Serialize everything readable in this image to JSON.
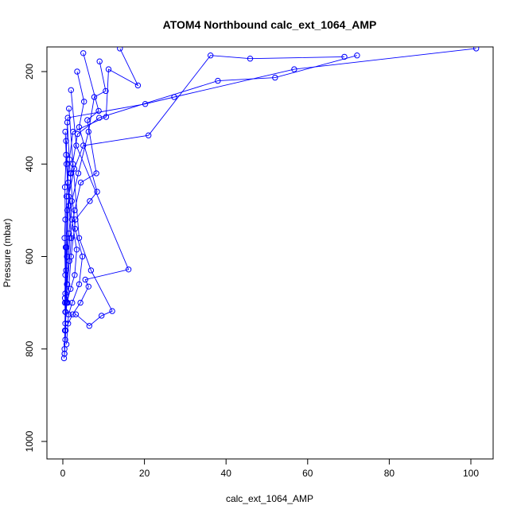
{
  "chart_data": {
    "type": "scatter",
    "title": "ATOM4 Northbound calc_ext_1064_AMP",
    "xlabel": "calc_ext_1064_AMP",
    "ylabel": "Pressure (mbar)",
    "xlim": [
      0,
      105
    ],
    "ylim": [
      1040,
      150
    ],
    "y_reversed": true,
    "grid": false,
    "legend": "none",
    "color": "#0000ff",
    "x_ticks": [
      0,
      20,
      40,
      60,
      80,
      100
    ],
    "y_ticks": [
      200,
      400,
      600,
      800,
      1000
    ],
    "x_tick_labels": [
      "0",
      "20",
      "40",
      "60",
      "80",
      "100"
    ],
    "y_tick_labels": [
      "200",
      "400",
      "600",
      "800",
      "1000"
    ],
    "series": [
      {
        "x": [
          101.3,
          56.7,
          27.3,
          20.2,
          1.2,
          0.8,
          0.5,
          0.6,
          0.4,
          0.6,
          0.5,
          0.7,
          0.4,
          0.3
        ],
        "y": [
          150,
          195,
          255,
          270,
          300,
          380,
          450,
          520,
          560,
          640,
          700,
          760,
          810,
          820
        ]
      },
      {
        "x": [
          72.1,
          52.0,
          38.0,
          8.9,
          3.6,
          2.0,
          1.1,
          0.9,
          0.6,
          0.5,
          0.4
        ],
        "y": [
          165,
          213,
          220,
          300,
          335,
          420,
          500,
          580,
          680,
          760,
          810
        ]
      },
      {
        "x": [
          69.0,
          45.9,
          36.2,
          21.0,
          5.0,
          2.8,
          1.4,
          1.0,
          0.8,
          0.6
        ],
        "y": [
          168,
          172,
          165,
          338,
          360,
          410,
          470,
          600,
          700,
          780
        ]
      },
      {
        "x": [
          14.0,
          18.4,
          11.2,
          10.6,
          2.5,
          1.6,
          0.9,
          0.7,
          0.5
        ],
        "y": [
          150,
          230,
          195,
          298,
          330,
          390,
          470,
          580,
          690
        ]
      },
      {
        "x": [
          9.0,
          10.5,
          7.7,
          6.3,
          3.8,
          2.2,
          1.5,
          0.8,
          0.6
        ],
        "y": [
          178,
          242,
          255,
          330,
          420,
          480,
          550,
          630,
          720
        ]
      },
      {
        "x": [
          5.0,
          8.8,
          6.0,
          8.2,
          4.4,
          2.9,
          1.7,
          1.0
        ],
        "y": [
          160,
          285,
          305,
          420,
          440,
          500,
          560,
          660
        ]
      },
      {
        "x": [
          3.5,
          5.2,
          4.0,
          8.4,
          6.6,
          3.1,
          2.0,
          1.2
        ],
        "y": [
          200,
          265,
          320,
          460,
          480,
          520,
          600,
          700
        ]
      },
      {
        "x": [
          2.0,
          3.3,
          16.1,
          5.5,
          6.3,
          4.3,
          2.4,
          1.3
        ],
        "y": [
          240,
          360,
          628,
          650,
          665,
          700,
          725,
          745
        ]
      },
      {
        "x": [
          1.5,
          2.5,
          4.0,
          6.9,
          12.1,
          9.5,
          6.5,
          3.2
        ],
        "y": [
          280,
          400,
          560,
          630,
          718,
          728,
          750,
          725
        ]
      },
      {
        "x": [
          1.1,
          1.8,
          3.0,
          4.8,
          4.0,
          2.3,
          1.4,
          0.9
        ],
        "y": [
          310,
          420,
          540,
          600,
          660,
          700,
          725,
          790
        ]
      },
      {
        "x": [
          0.8,
          1.3,
          2.2,
          3.4,
          2.9,
          1.9,
          1.0,
          0.6
        ],
        "y": [
          350,
          440,
          520,
          585,
          640,
          670,
          700,
          745
        ]
      },
      {
        "x": [
          0.6,
          0.9,
          1.5,
          2.1,
          1.6,
          1.1,
          0.7,
          0.4
        ],
        "y": [
          330,
          400,
          490,
          560,
          610,
          660,
          720,
          800
        ]
      }
    ]
  }
}
